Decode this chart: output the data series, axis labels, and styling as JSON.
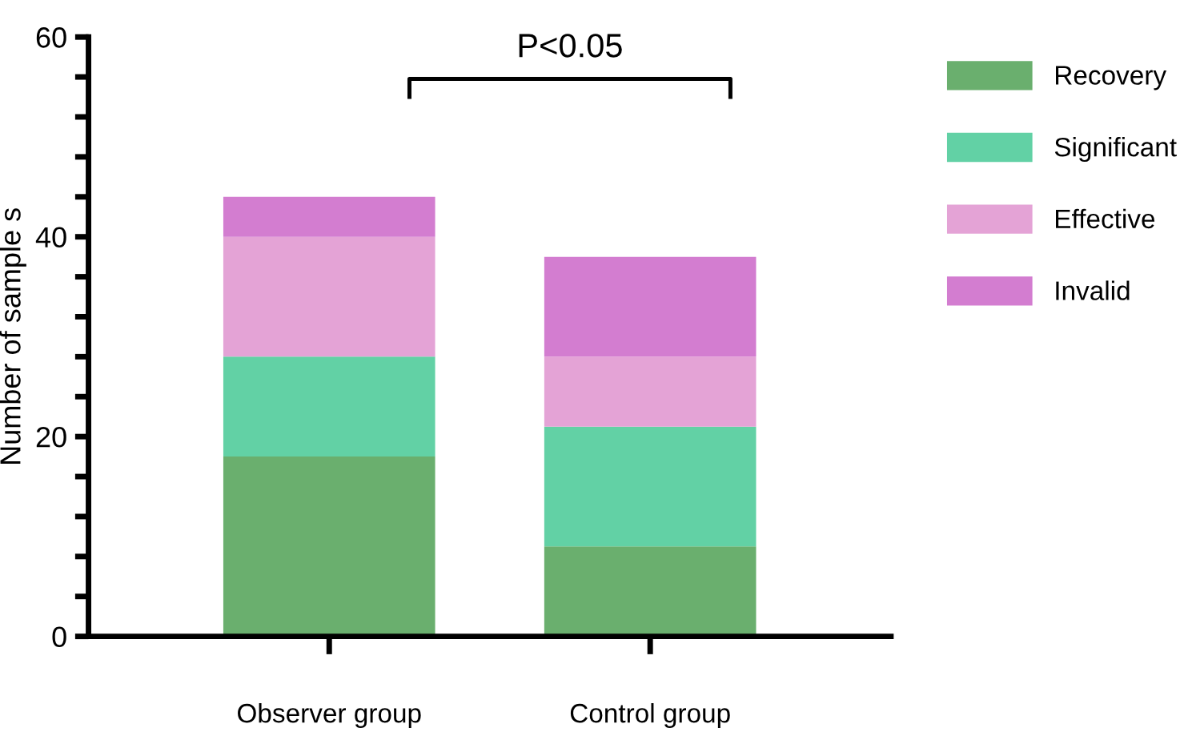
{
  "chart_data": {
    "type": "bar",
    "stacked": true,
    "categories": [
      "Observer group",
      "Control group"
    ],
    "series": [
      {
        "name": "Recovery",
        "color": "#6aaf6e",
        "values": [
          18,
          9
        ]
      },
      {
        "name": "Significant",
        "color": "#62d1a5",
        "values": [
          10,
          12
        ]
      },
      {
        "name": "Effective",
        "color": "#e4a3d6",
        "values": [
          12,
          7
        ]
      },
      {
        "name": "Invalid",
        "color": "#d37dd0",
        "values": [
          4,
          10
        ]
      }
    ],
    "ylabel": "Number of sample s",
    "ylim": [
      0,
      60
    ],
    "yticks": [
      0,
      {
        "value": 4,
        "label": null
      },
      {
        "value": 8,
        "label": null
      },
      {
        "value": 12,
        "label": null
      },
      {
        "value": 16,
        "label": null
      },
      20,
      {
        "value": 24,
        "label": null
      },
      {
        "value": 28,
        "label": null
      },
      {
        "value": 32,
        "label": null
      },
      {
        "value": 36,
        "label": null
      },
      40,
      {
        "value": 44,
        "label": null
      },
      {
        "value": 48,
        "label": null
      },
      {
        "value": 52,
        "label": null
      },
      {
        "value": 56,
        "label": null
      },
      60
    ],
    "annotations": [
      "P<0.05"
    ],
    "legend": "right",
    "grid": false
  }
}
